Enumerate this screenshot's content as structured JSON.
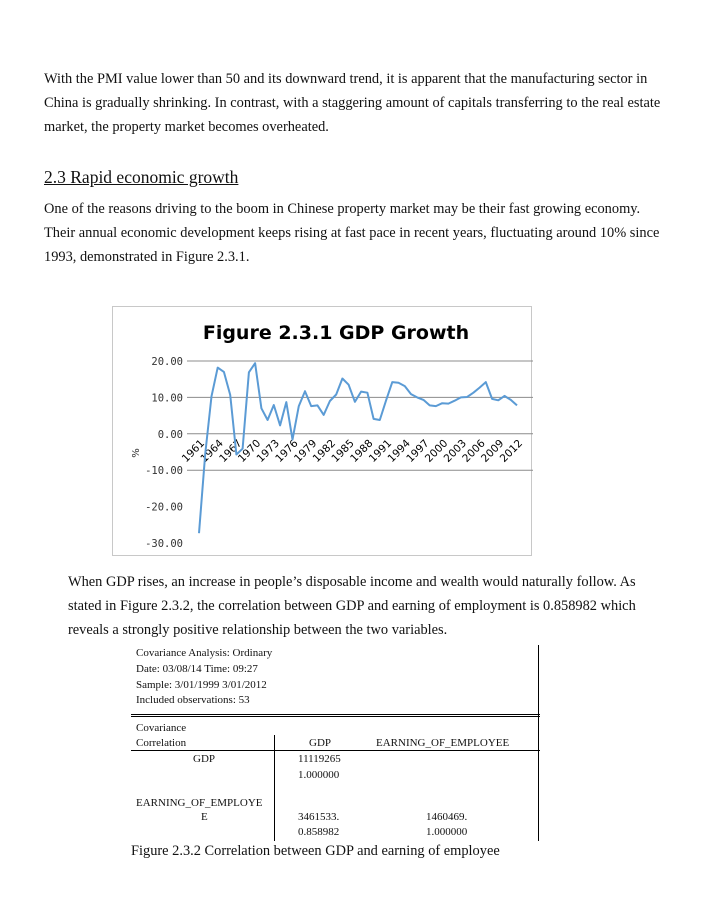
{
  "paragraphs": {
    "p1": "With the PMI value lower than 50 and its downward trend, it is apparent that the manufacturing sector in China is gradually shrinking. In contrast, with a staggering amount of capitals transferring to the real estate market, the property market becomes overheated.",
    "heading": "2.3 Rapid economic growth",
    "p2": "One of the reasons driving to the boom in Chinese property market may be their fast growing economy. Their annual economic development keeps rising at fast pace in recent years, fluctuating around 10% since 1993, demonstrated in Figure 2.3.1.",
    "p3": "When GDP rises, an increase in people’s disposable income and wealth would naturally follow. As stated in Figure 2.3.2, the correlation between GDP and earning of employment is 0.858982 which reveals a strongly positive relationship between the two variables."
  },
  "chart_data": {
    "type": "line",
    "title": "Figure 2.3.1 GDP Growth",
    "ylabel": "%",
    "xlabel": "",
    "ylim": [
      -30,
      20
    ],
    "yticks": [
      "20.00",
      "10.00",
      "0.00",
      "-10.00",
      "-20.00",
      "-30.00"
    ],
    "xticks": [
      "1961",
      "1964",
      "1967",
      "1970",
      "1973",
      "1976",
      "1979",
      "1982",
      "1985",
      "1988",
      "1991",
      "1994",
      "1997",
      "2000",
      "2003",
      "2006",
      "2009",
      "2012"
    ],
    "grid": true,
    "color": "#5b9bd5",
    "x": [
      1961,
      1962,
      1963,
      1964,
      1965,
      1966,
      1967,
      1968,
      1969,
      1970,
      1971,
      1972,
      1973,
      1974,
      1975,
      1976,
      1977,
      1978,
      1979,
      1980,
      1981,
      1982,
      1983,
      1984,
      1985,
      1986,
      1987,
      1988,
      1989,
      1990,
      1991,
      1992,
      1993,
      1994,
      1995,
      1996,
      1997,
      1998,
      1999,
      2000,
      2001,
      2002,
      2003,
      2004,
      2005,
      2006,
      2007,
      2008,
      2009,
      2010,
      2011,
      2012
    ],
    "values": [
      -27.3,
      -5.6,
      10.3,
      18.2,
      17.0,
      10.7,
      -5.7,
      -4.1,
      16.9,
      19.4,
      7.0,
      3.8,
      7.9,
      2.3,
      8.7,
      -1.6,
      7.6,
      11.7,
      7.6,
      7.8,
      5.2,
      9.0,
      10.8,
      15.2,
      13.5,
      8.8,
      11.6,
      11.3,
      4.1,
      3.8,
      9.2,
      14.2,
      14.0,
      13.1,
      10.9,
      10.0,
      9.3,
      7.8,
      7.6,
      8.4,
      8.3,
      9.1,
      10.0,
      10.1,
      11.3,
      12.7,
      14.2,
      9.6,
      9.2,
      10.4,
      9.3,
      7.8
    ]
  },
  "covariance": {
    "header_lines": [
      "Covariance Analysis: Ordinary",
      "Date: 03/08/14   Time: 09:27",
      "Sample: 3/01/1999 3/01/2012",
      "Included observations: 53"
    ],
    "label_cov": "Covariance",
    "label_corr": "Correlation",
    "col_gdp": "GDP",
    "col_eoe": "EARNING_OF_EMPLOYEE",
    "row1_label": "GDP",
    "row1_cov": "11119265",
    "row1_corr": "1.000000",
    "row2_label_a": "EARNING_OF_EMPLOYE",
    "row2_label_b": "E",
    "row2_cov_gdp": "3461533.",
    "row2_corr_gdp": "0.858982",
    "row2_cov_eoe": "1460469.",
    "row2_corr_eoe": "1.000000"
  },
  "caption": "Figure 2.3.2 Correlation between GDP and earning of employee"
}
